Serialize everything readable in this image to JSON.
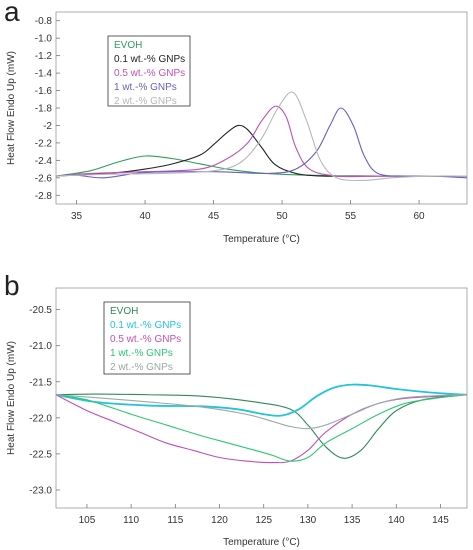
{
  "panels": {
    "a_label": "a",
    "b_label": "b"
  },
  "chart_data": [
    {
      "type": "line",
      "panel": "a",
      "xlabel": "Temperature  (°C)",
      "ylabel": "Heat Flow Endo Up (mW)",
      "xlim": [
        33.5,
        63.5
      ],
      "ylim": [
        -2.9,
        -0.7
      ],
      "xticks": [
        35,
        40,
        45,
        50,
        55,
        60
      ],
      "yticks": [
        -2.8,
        -2.6,
        -2.4,
        -2.2,
        -2.0,
        -1.8,
        -1.6,
        -1.4,
        -1.2,
        -1.0,
        -0.8
      ],
      "ytick_labels": [
        "-2.8",
        "-2.6",
        "-2.4",
        "-2.2",
        "-2",
        "-1.8",
        "-1.6",
        "-1.4",
        "-1.2",
        "-1.0",
        "-0.8"
      ],
      "grid": false,
      "legend_position": "top-left",
      "series": [
        {
          "name": "EVOH",
          "color": "#2e9e5b",
          "x": [
            33.5,
            36,
            38,
            40,
            42,
            44,
            46,
            48,
            50,
            52,
            55,
            58,
            61,
            63.5
          ],
          "y": [
            -2.58,
            -2.52,
            -2.42,
            -2.35,
            -2.38,
            -2.44,
            -2.5,
            -2.54,
            -2.56,
            -2.57,
            -2.58,
            -2.58,
            -2.58,
            -2.58
          ]
        },
        {
          "name": "0.1 wt.-% GNPs",
          "color": "#222222",
          "x": [
            33.5,
            36,
            38,
            40,
            42,
            44,
            45,
            46,
            46.8,
            47.5,
            48.5,
            49.5,
            51,
            53,
            56,
            60,
            63.5
          ],
          "y": [
            -2.58,
            -2.56,
            -2.54,
            -2.5,
            -2.44,
            -2.34,
            -2.22,
            -2.08,
            -2.0,
            -2.05,
            -2.25,
            -2.45,
            -2.55,
            -2.58,
            -2.58,
            -2.58,
            -2.58
          ]
        },
        {
          "name": "0.5 wt.-% GNPs",
          "color": "#c050b8",
          "x": [
            33.5,
            36,
            40,
            44,
            46,
            47.5,
            48.5,
            49.5,
            50.3,
            51,
            52,
            54,
            57,
            60,
            63.5
          ],
          "y": [
            -2.58,
            -2.55,
            -2.53,
            -2.5,
            -2.38,
            -2.2,
            -1.95,
            -1.78,
            -1.9,
            -2.25,
            -2.5,
            -2.58,
            -2.58,
            -2.58,
            -2.58
          ]
        },
        {
          "name": "1 wt.-% GNPs",
          "color": "#6a5fc0",
          "x": [
            33.5,
            35,
            37,
            40,
            45,
            49,
            51,
            52.5,
            53.5,
            54.3,
            55.2,
            56,
            57,
            59,
            61,
            63.5
          ],
          "y": [
            -2.58,
            -2.57,
            -2.6,
            -2.54,
            -2.53,
            -2.55,
            -2.5,
            -2.3,
            -2.0,
            -1.8,
            -2.0,
            -2.35,
            -2.55,
            -2.58,
            -2.58,
            -2.6
          ]
        },
        {
          "name": "2 wt.-% GNPs",
          "color": "#b8b8b8",
          "x": [
            33.5,
            37,
            41,
            45,
            47,
            48.5,
            49.7,
            50.8,
            51.8,
            52.8,
            54,
            56,
            58,
            61,
            63.5
          ],
          "y": [
            -2.58,
            -2.56,
            -2.55,
            -2.52,
            -2.42,
            -2.15,
            -1.8,
            -1.62,
            -1.95,
            -2.4,
            -2.6,
            -2.63,
            -2.6,
            -2.58,
            -2.58
          ]
        }
      ]
    },
    {
      "type": "line",
      "panel": "b",
      "xlabel": "Temperature  (°C)",
      "ylabel": "Heat Flow Endo Up (mW)",
      "xlim": [
        101.5,
        148
      ],
      "ylim": [
        -23.25,
        -20.2
      ],
      "xticks": [
        105,
        110,
        115,
        120,
        125,
        130,
        135,
        140,
        145
      ],
      "yticks": [
        -23.0,
        -22.5,
        -22.0,
        -21.5,
        -21.0,
        -20.5
      ],
      "ytick_labels": [
        "-23.0",
        "-22.5",
        "-22.0",
        "-21.5",
        "-21.0",
        "-20.5"
      ],
      "grid": false,
      "legend_position": "top-left",
      "series": [
        {
          "name": "EVOH",
          "color": "#2e8b57",
          "x": [
            101.5,
            106,
            112,
            118,
            124,
            128,
            130,
            132,
            134,
            136,
            138,
            140,
            143,
            148
          ],
          "y": [
            -21.68,
            -21.67,
            -21.68,
            -21.7,
            -21.78,
            -21.88,
            -22.1,
            -22.4,
            -22.56,
            -22.45,
            -22.15,
            -21.9,
            -21.75,
            -21.68
          ]
        },
        {
          "name": "0.1 wt.-% GNPs",
          "color": "#22c4dc",
          "x": [
            101.5,
            106,
            112,
            118,
            122,
            125,
            127,
            129,
            131,
            133,
            135,
            137,
            140,
            144,
            148
          ],
          "y": [
            -21.68,
            -21.78,
            -21.83,
            -21.84,
            -21.88,
            -21.95,
            -21.97,
            -21.88,
            -21.7,
            -21.58,
            -21.54,
            -21.55,
            -21.6,
            -21.65,
            -21.68
          ]
        },
        {
          "name": "0.5 wt.-% GNPs",
          "color": "#c050b8",
          "x": [
            101.5,
            105,
            108,
            111,
            114,
            117,
            120,
            123,
            126,
            128,
            130,
            132,
            135,
            138,
            141,
            145,
            148
          ],
          "y": [
            -21.68,
            -21.9,
            -22.05,
            -22.2,
            -22.35,
            -22.45,
            -22.55,
            -22.6,
            -22.62,
            -22.6,
            -22.45,
            -22.2,
            -21.95,
            -21.8,
            -21.73,
            -21.7,
            -21.68
          ]
        },
        {
          "name": "1 wt.-% GNPs",
          "color": "#2ec870",
          "x": [
            101.5,
            105,
            110,
            114,
            118,
            121,
            124,
            126,
            128,
            130,
            132,
            135,
            138,
            141,
            145,
            148
          ],
          "y": [
            -21.68,
            -21.75,
            -21.95,
            -22.1,
            -22.25,
            -22.35,
            -22.45,
            -22.52,
            -22.6,
            -22.55,
            -22.35,
            -22.15,
            -21.95,
            -21.8,
            -21.72,
            -21.68
          ]
        },
        {
          "name": "2 wt.-% GNPs",
          "color": "#9aa8a8",
          "x": [
            101.5,
            106,
            112,
            118,
            123,
            126,
            128,
            130,
            132,
            135,
            138,
            141,
            145,
            148
          ],
          "y": [
            -21.68,
            -21.72,
            -21.78,
            -21.85,
            -21.95,
            -22.05,
            -22.12,
            -22.15,
            -22.1,
            -21.95,
            -21.8,
            -21.72,
            -21.69,
            -21.68
          ]
        }
      ]
    }
  ]
}
